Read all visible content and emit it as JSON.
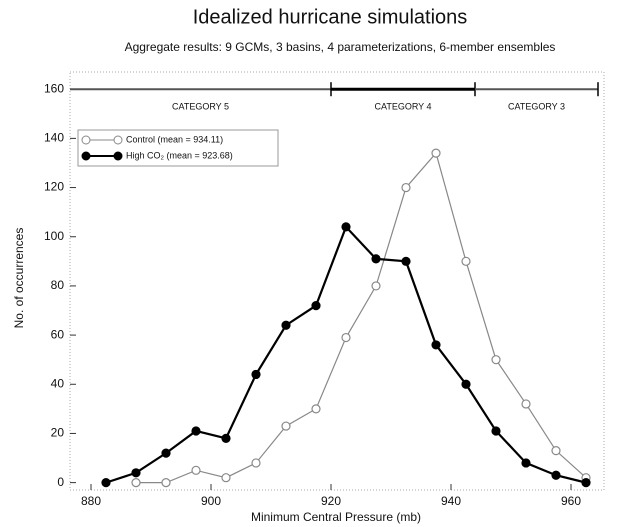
{
  "chart_data": {
    "type": "line",
    "title": "Idealized hurricane simulations",
    "subtitle": "Aggregate results: 9 GCMs, 3 basins, 4 parameterizations, 6-member ensembles",
    "x_label": "Minimum Central Pressure (mb)",
    "y_label": "No. of occurrences",
    "x": [
      882.5,
      887.5,
      892.5,
      897.5,
      902.5,
      907.5,
      912.5,
      917.5,
      922.5,
      927.5,
      932.5,
      937.5,
      942.5,
      947.5,
      952.5,
      957.5,
      962.5
    ],
    "series": [
      {
        "name": "Control (mean = 934.11)",
        "color": "#888888",
        "marker": "open",
        "values": [
          null,
          0,
          0,
          5,
          2,
          8,
          23,
          30,
          59,
          80,
          120,
          134,
          90,
          50,
          32,
          13,
          2
        ]
      },
      {
        "name": "High CO₂ (mean = 923.68)",
        "color": "#000000",
        "marker": "filled",
        "values": [
          0,
          4,
          12,
          21,
          18,
          44,
          64,
          72,
          104,
          91,
          90,
          56,
          40,
          21,
          8,
          3,
          0
        ]
      }
    ],
    "category_bands": [
      {
        "label": "CATEGORY 5",
        "start": 876.5,
        "end": 920
      },
      {
        "label": "CATEGORY 4",
        "start": 920,
        "end": 944
      },
      {
        "label": "CATEGORY 3",
        "start": 944,
        "end": 964.5
      }
    ],
    "category_level": 160,
    "xlim": [
      876.5,
      965.5
    ],
    "xticks": [
      880,
      900,
      920,
      940,
      960
    ],
    "ylim": [
      -3,
      167
    ],
    "yticks": [
      0,
      20,
      40,
      60,
      80,
      100,
      120,
      140,
      160
    ],
    "legend": "upper-left"
  }
}
